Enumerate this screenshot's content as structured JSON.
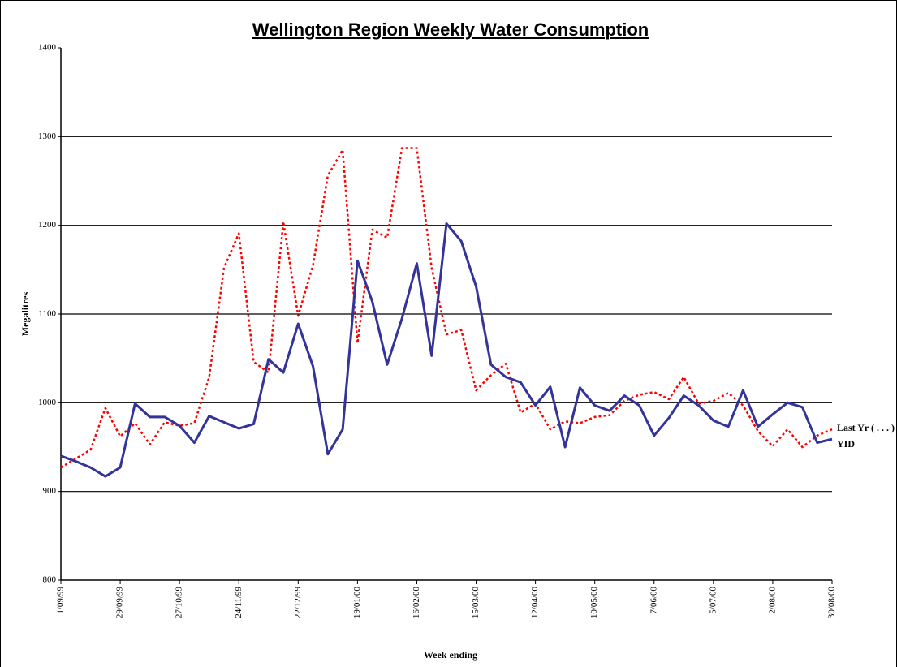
{
  "chart_data": {
    "type": "line",
    "title": "Wellington Region Weekly Water Consumption",
    "x_label": "Week ending",
    "y_label": "Megalitres",
    "categories": [
      "1/09/99",
      null,
      null,
      null,
      "29/09/99",
      null,
      null,
      null,
      "27/10/99",
      null,
      null,
      null,
      "24/11/99",
      null,
      null,
      null,
      "22/12/99",
      null,
      null,
      null,
      "19/01/00",
      null,
      null,
      null,
      "16/02/00",
      null,
      null,
      null,
      "15/03/00",
      null,
      null,
      null,
      "12/04/00",
      null,
      null,
      null,
      "10/05/00",
      null,
      null,
      null,
      "7/06/00",
      null,
      null,
      null,
      "5/07/00",
      null,
      null,
      null,
      "2/08/00",
      null,
      null,
      null,
      "30/08/00"
    ],
    "series": [
      {
        "name": "Last Yr ( . . . )",
        "color": "#ff0000",
        "dash": true,
        "values": [
          927,
          937,
          947,
          994,
          962,
          977,
          953,
          978,
          974,
          977,
          1029,
          1152,
          1191,
          1046,
          1034,
          1204,
          1098,
          1155,
          1256,
          1285,
          1067,
          1195,
          1186,
          1287,
          1287,
          1152,
          1077,
          1082,
          1014,
          1031,
          1044,
          989,
          999,
          970,
          979,
          977,
          984,
          986,
          1002,
          1009,
          1012,
          1004,
          1029,
          999,
          1002,
          1011,
          997,
          968,
          951,
          970,
          950,
          963,
          970
        ]
      },
      {
        "name": "YID",
        "color": "#333399",
        "dash": false,
        "values": [
          940,
          934,
          927,
          917,
          927,
          999,
          984,
          984,
          974,
          955,
          985,
          978,
          971,
          976,
          1049,
          1034,
          1089,
          1041,
          942,
          970,
          1160,
          1114,
          1043,
          1095,
          1157,
          1053,
          1202,
          1182,
          1131,
          1043,
          1029,
          1023,
          997,
          1018,
          950,
          1017,
          997,
          991,
          1008,
          997,
          963,
          983,
          1008,
          997,
          980,
          973,
          1014,
          973,
          987,
          1000,
          995,
          955,
          959
        ]
      }
    ],
    "ylim": [
      800,
      1400
    ],
    "yticks": [
      800,
      900,
      1000,
      1100,
      1200,
      1300,
      1400
    ],
    "grid": true
  }
}
